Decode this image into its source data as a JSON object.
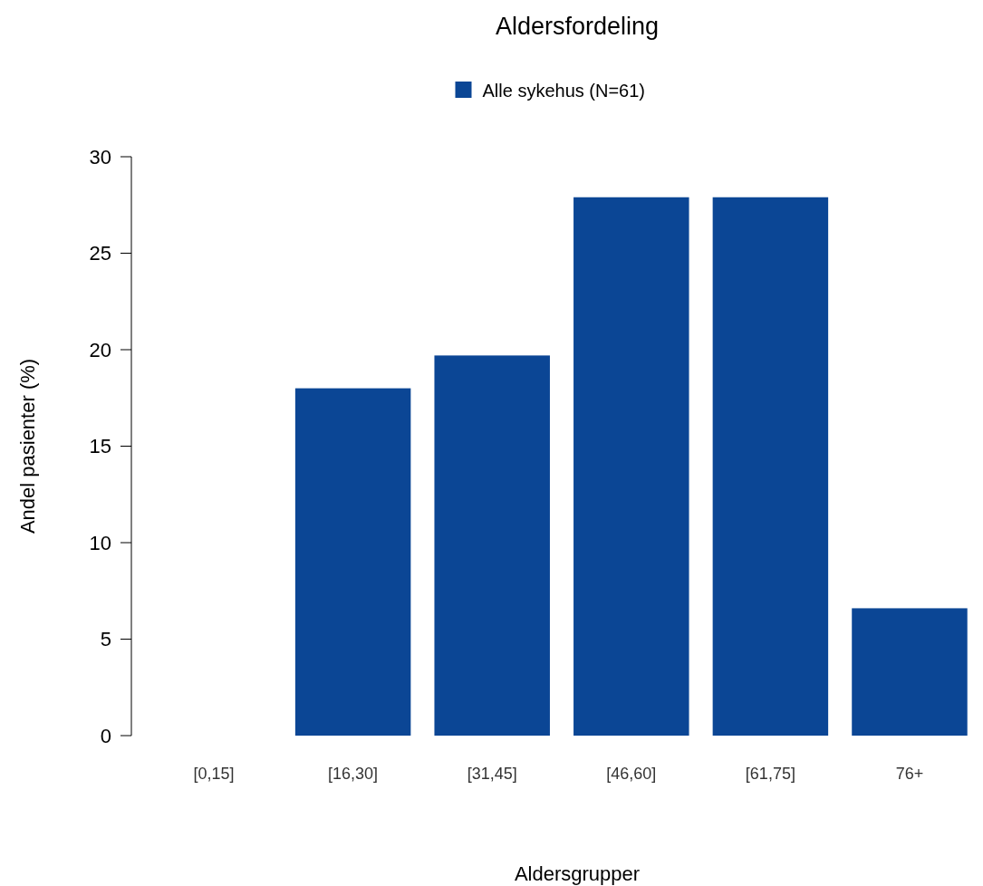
{
  "chart_data": {
    "type": "bar",
    "title": "Aldersfordeling",
    "xlabel": "Aldersgrupper",
    "ylabel": "Andel pasienter (%)",
    "categories": [
      "[0,15]",
      "[16,30]",
      "[31,45]",
      "[46,60]",
      "[61,75]",
      "76+"
    ],
    "series": [
      {
        "name": "Alle sykehus (N=61)",
        "color": "#0b4695",
        "values": [
          0,
          18.0,
          19.7,
          27.9,
          27.9,
          6.6
        ]
      }
    ],
    "ylim": [
      0,
      30
    ],
    "yticks": [
      0,
      5,
      10,
      15,
      20,
      25,
      30
    ],
    "grid": false,
    "legend": "top"
  }
}
